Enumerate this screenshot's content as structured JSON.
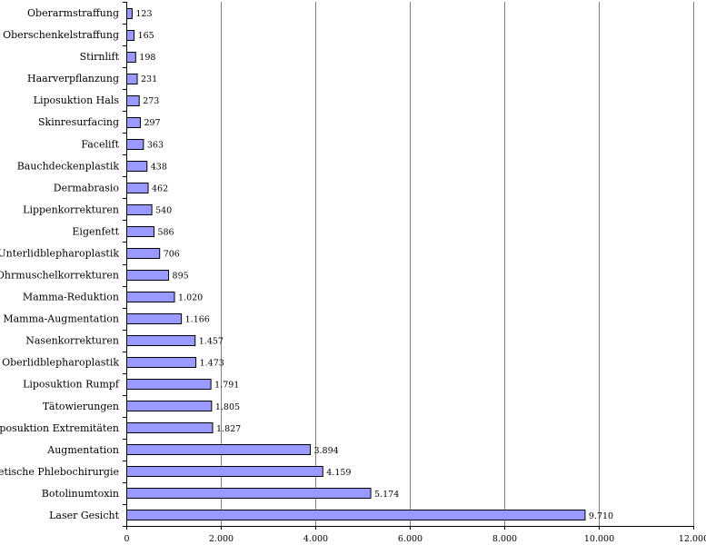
{
  "chart_data": {
    "type": "bar",
    "orientation": "horizontal",
    "categories": [
      "Oberarmstraffung",
      "Oberschenkelstraffung",
      "Stirnlift",
      "Haarverpflanzung",
      "Liposuktion Hals",
      "Skinresurfacing",
      "Facelift",
      "Bauchdeckenplastik",
      "Dermabrasio",
      "Lippenkorrekturen",
      "Eigenfett",
      "Unterlidblepharoplastik",
      "Ohrmuschelkorrekturen",
      "Mamma-Reduktion",
      "Mamma-Augmentation",
      "Nasenkorrekturen",
      "Oberlidblepharoplastik",
      "Liposuktion Rumpf",
      "Tätowierungen",
      "Liposuktion Extremitäten",
      "Augmentation",
      "Ästhetische Phlebochirurgie",
      "Botolinumtoxin",
      "Laser Gesicht"
    ],
    "values": [
      123,
      165,
      198,
      231,
      273,
      297,
      363,
      438,
      462,
      540,
      586,
      706,
      895,
      1020,
      1166,
      1457,
      1473,
      1791,
      1805,
      1827,
      3894,
      4159,
      5174,
      9710
    ],
    "value_labels": [
      "123",
      "165",
      "198",
      "231",
      "273",
      "297",
      "363",
      "438",
      "462",
      "540",
      "586",
      "706",
      "895",
      "1.020",
      "1.166",
      "1.457",
      "1.473",
      "1.791",
      "1.805",
      "1.827",
      "3.894",
      "4.159",
      "5.174",
      "9.710"
    ],
    "xlim": [
      0,
      12000
    ],
    "xticks": [
      0,
      2000,
      4000,
      6000,
      8000,
      10000,
      12000
    ],
    "xtick_labels": [
      "0",
      "2.000",
      "4.000",
      "6.000",
      "8.000",
      "10.000",
      "12.000"
    ],
    "title": "",
    "xlabel": "",
    "ylabel": "",
    "grid": "vertical gridlines",
    "legend": "none",
    "colors": {
      "bar_fill": "#9999ff",
      "bar_stroke": "#000000",
      "grid": "#808080",
      "axis": "#000000"
    }
  }
}
